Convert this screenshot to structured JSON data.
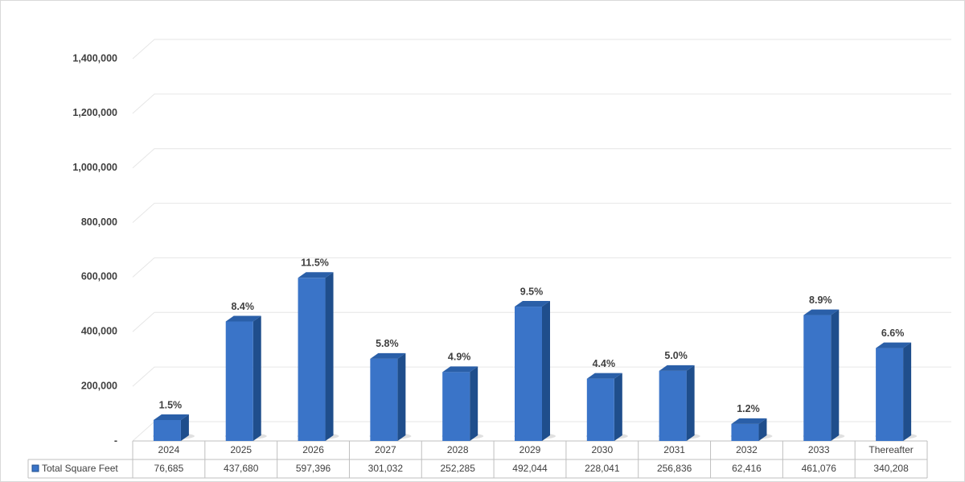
{
  "chart_data": {
    "type": "bar3d",
    "categories": [
      "2024",
      "2025",
      "2026",
      "2027",
      "2028",
      "2029",
      "2030",
      "2031",
      "2032",
      "2033",
      "Thereafter"
    ],
    "series": [
      {
        "name": "Total Square Feet",
        "color": "#3a74c8",
        "values": [
          76685,
          437680,
          597396,
          301032,
          252285,
          492044,
          228041,
          256836,
          62416,
          461076,
          340208
        ],
        "value_labels": [
          "76,685",
          "437,680",
          "597,396",
          "301,032",
          "252,285",
          "492,044",
          "228,041",
          "256,836",
          "62,416",
          "461,076",
          "340,208"
        ]
      }
    ],
    "annotations": [
      "1.5%",
      "8.4%",
      "11.5%",
      "5.8%",
      "4.9%",
      "9.5%",
      "4.4%",
      "5.0%",
      "1.2%",
      "8.9%",
      "6.6%"
    ],
    "ylim": [
      0,
      1400000
    ],
    "yticks": [
      {
        "value": 0,
        "label": "-"
      },
      {
        "value": 200000,
        "label": "200,000"
      },
      {
        "value": 400000,
        "label": "400,000"
      },
      {
        "value": 600000,
        "label": "600,000"
      },
      {
        "value": 800000,
        "label": "800,000"
      },
      {
        "value": 1000000,
        "label": "1,000,000"
      },
      {
        "value": 1200000,
        "label": "1,200,000"
      },
      {
        "value": 1400000,
        "label": "1,400,000"
      }
    ],
    "grid": true
  }
}
